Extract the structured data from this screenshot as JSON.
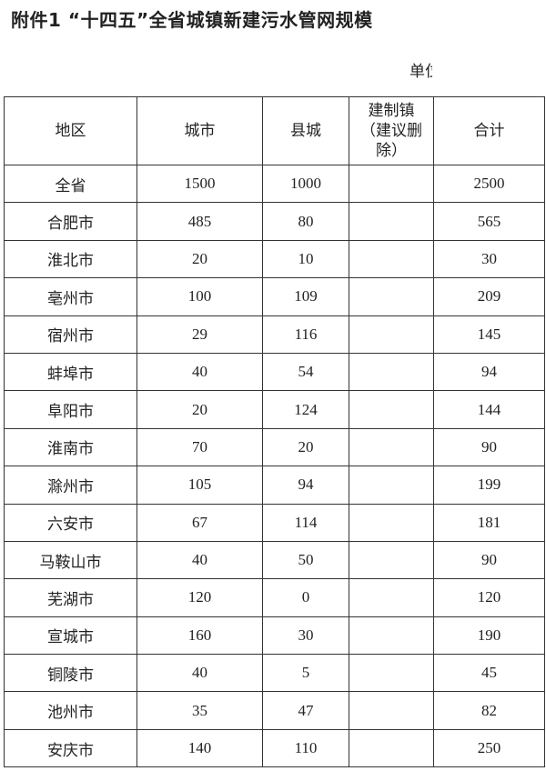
{
  "title": "附件1 “十四五”全省城镇新建污水管网规模",
  "unit_label": "单位",
  "table": {
    "headers": [
      "地区",
      "城市",
      "县城",
      "建制镇（建议删除）",
      "合计"
    ],
    "rows": [
      [
        "全省",
        "1500",
        "1000",
        "",
        "2500"
      ],
      [
        "合肥市",
        "485",
        "80",
        "",
        "565"
      ],
      [
        "淮北市",
        "20",
        "10",
        "",
        "30"
      ],
      [
        "亳州市",
        "100",
        "109",
        "",
        "209"
      ],
      [
        "宿州市",
        "29",
        "116",
        "",
        "145"
      ],
      [
        "蚌埠市",
        "40",
        "54",
        "",
        "94"
      ],
      [
        "阜阳市",
        "20",
        "124",
        "",
        "144"
      ],
      [
        "淮南市",
        "70",
        "20",
        "",
        "90"
      ],
      [
        "滁州市",
        "105",
        "94",
        "",
        "199"
      ],
      [
        "六安市",
        "67",
        "114",
        "",
        "181"
      ],
      [
        "马鞍山市",
        "40",
        "50",
        "",
        "90"
      ],
      [
        "芜湖市",
        "120",
        "0",
        "",
        "120"
      ],
      [
        "宣城市",
        "160",
        "30",
        "",
        "190"
      ],
      [
        "铜陵市",
        "40",
        "5",
        "",
        "45"
      ],
      [
        "池州市",
        "35",
        "47",
        "",
        "82"
      ],
      [
        "安庆市",
        "140",
        "110",
        "",
        "250"
      ]
    ]
  }
}
